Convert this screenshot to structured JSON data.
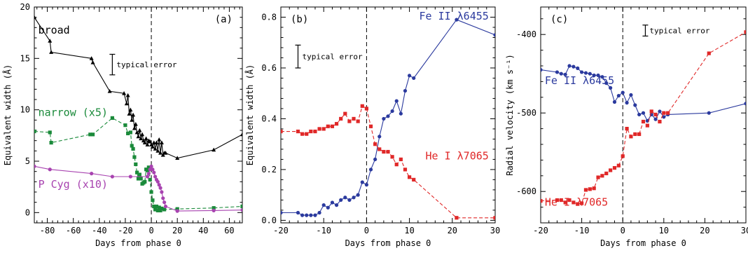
{
  "chart_data": [
    {
      "type": "line",
      "panel_label": "(a)",
      "xlabel": "Days from phase 0",
      "ylabel": "Equivalent width (Å)",
      "xlim": [
        -90,
        70
      ],
      "ylim": [
        -1,
        20
      ],
      "xticks": [
        -80,
        -60,
        -40,
        -20,
        0,
        20,
        40,
        60
      ],
      "yticks": [
        0,
        5,
        10,
        15,
        20
      ],
      "phase_zero_line": true,
      "typical_error": {
        "label": "typical error",
        "x": -30,
        "y": 14.4,
        "half_height": 1.0
      },
      "series": [
        {
          "name": "broad",
          "color": "#000000",
          "marker": "triangle",
          "dashed": false,
          "label_pos": [
            -87,
            17.4
          ],
          "x": [
            -90,
            -78,
            -77,
            -46,
            -45,
            -32,
            -21,
            -19,
            -18,
            -17,
            -16,
            -15,
            -14,
            -13,
            -12,
            -11,
            -10,
            -9,
            -8,
            -7,
            -6,
            -5,
            -4,
            -3,
            -2,
            -1,
            0,
            1,
            2,
            3,
            4,
            5,
            6,
            7,
            8,
            9,
            10,
            11,
            20,
            48,
            70
          ],
          "y": [
            19.0,
            16.7,
            15.6,
            15.0,
            14.6,
            11.8,
            11.6,
            10.6,
            11.4,
            9.6,
            10.0,
            9.0,
            9.5,
            8.2,
            8.6,
            7.8,
            7.4,
            8.0,
            7.2,
            7.6,
            7.0,
            6.8,
            7.2,
            6.6,
            7.0,
            6.9,
            6.6,
            6.4,
            6.8,
            6.2,
            6.8,
            6.0,
            7.1,
            5.8,
            6.8,
            5.6,
            5.8,
            5.8,
            5.3,
            6.1,
            7.6
          ]
        },
        {
          "name": "narrow (x5)",
          "color": "#1a8a3a",
          "marker": "square",
          "dashed": true,
          "label_pos": [
            -87,
            9.4
          ],
          "x": [
            -90,
            -78,
            -77,
            -47,
            -45,
            -30,
            -20,
            -18,
            -16,
            -15,
            -14,
            -13,
            -12,
            -11,
            -10,
            -9,
            -8,
            -7,
            -6,
            -5,
            -4,
            -3,
            -2,
            -1,
            0,
            1,
            2,
            3,
            4,
            5,
            6,
            7,
            8,
            10,
            20,
            48,
            70
          ],
          "y": [
            7.9,
            7.8,
            6.8,
            7.6,
            7.6,
            9.2,
            8.5,
            7.7,
            7.8,
            6.5,
            6.2,
            5.4,
            4.7,
            3.9,
            3.3,
            3.7,
            3.3,
            2.8,
            2.9,
            3.0,
            4.2,
            4.1,
            4.4,
            3.2,
            2.0,
            1.2,
            0.6,
            0.3,
            0.6,
            0.2,
            0.5,
            0.2,
            0.4,
            0.3,
            0.35,
            0.45,
            0.6
          ]
        },
        {
          "name": "P Cyg (x10)",
          "color": "#a843b0",
          "marker": "circle",
          "dashed": false,
          "label_pos": [
            -87,
            2.4
          ],
          "x": [
            -90,
            -78,
            -46,
            -30,
            -16,
            -3,
            -2,
            -1,
            0,
            1,
            2,
            3,
            4,
            5,
            6,
            7,
            8,
            9,
            10,
            11,
            20,
            48,
            70
          ],
          "y": [
            4.5,
            4.2,
            3.8,
            3.5,
            3.5,
            3.5,
            3.8,
            4.2,
            4.5,
            4.2,
            3.9,
            3.5,
            3.2,
            3.0,
            2.7,
            2.4,
            2.0,
            1.4,
            1.0,
            0.6,
            0.15,
            0.2,
            0.25
          ]
        }
      ]
    },
    {
      "type": "line",
      "panel_label": "(b)",
      "xlabel": "Days from phase 0",
      "ylabel": "Equivalent width (Å)",
      "xlim": [
        -20,
        30
      ],
      "ylim": [
        -0.01,
        0.84
      ],
      "xticks": [
        -20,
        -10,
        0,
        10,
        20,
        30
      ],
      "yticks": [
        0.0,
        0.2,
        0.4,
        0.6,
        0.8
      ],
      "phase_zero_line": true,
      "typical_error": {
        "label": "typical error",
        "x": -16,
        "y": 0.645,
        "half_height": 0.045
      },
      "series": [
        {
          "name": "Fe II λ6455",
          "color": "#2b3a9e",
          "marker": "circle",
          "dashed": false,
          "label_pos": [
            28.5,
            0.79
          ],
          "label_anchor": "end",
          "x": [
            -20,
            -16,
            -15,
            -14,
            -13,
            -12,
            -11,
            -10,
            -9,
            -8,
            -7,
            -6,
            -5,
            -4,
            -3,
            -2,
            -1,
            0,
            1,
            2,
            3,
            4,
            5,
            6,
            7,
            8,
            9,
            10,
            11,
            21,
            30
          ],
          "y": [
            0.03,
            0.03,
            0.02,
            0.02,
            0.02,
            0.02,
            0.03,
            0.06,
            0.05,
            0.07,
            0.06,
            0.08,
            0.09,
            0.08,
            0.09,
            0.1,
            0.15,
            0.14,
            0.2,
            0.24,
            0.33,
            0.4,
            0.41,
            0.43,
            0.47,
            0.42,
            0.51,
            0.57,
            0.56,
            0.79,
            0.73
          ]
        },
        {
          "name": "He I λ7065",
          "color": "#e02828",
          "marker": "square",
          "dashed": true,
          "label_pos": [
            28.5,
            0.24
          ],
          "label_anchor": "end",
          "x": [
            -20,
            -16,
            -15,
            -14,
            -13,
            -12,
            -11,
            -10,
            -9,
            -8,
            -7,
            -6,
            -5,
            -4,
            -3,
            -2,
            -1,
            0,
            1,
            2,
            3,
            4,
            5,
            6,
            7,
            8,
            9,
            10,
            11,
            21,
            30
          ],
          "y": [
            0.35,
            0.35,
            0.34,
            0.34,
            0.35,
            0.35,
            0.36,
            0.36,
            0.37,
            0.37,
            0.38,
            0.4,
            0.42,
            0.39,
            0.4,
            0.39,
            0.45,
            0.44,
            0.37,
            0.3,
            0.28,
            0.27,
            0.27,
            0.25,
            0.22,
            0.24,
            0.2,
            0.17,
            0.16,
            0.01,
            0.01
          ]
        }
      ]
    },
    {
      "type": "line",
      "panel_label": "(c)",
      "xlabel": "Days from phase 0",
      "ylabel": "Radial velocity (km s⁻¹)",
      "xlim": [
        -20,
        30
      ],
      "ylim": [
        -640,
        -365
      ],
      "xticks": [
        -20,
        -10,
        0,
        10,
        20,
        30
      ],
      "yticks": [
        -600,
        -500,
        -400
      ],
      "phase_zero_line": true,
      "typical_error": {
        "label": "typical error",
        "x": 5.5,
        "y": -395,
        "half_height": 7
      },
      "series": [
        {
          "name": "Fe II λ6455",
          "color": "#2b3a9e",
          "marker": "circle",
          "dashed": false,
          "label_pos": [
            -19,
            -463
          ],
          "x": [
            -20,
            -16,
            -15,
            -14,
            -13,
            -12,
            -11,
            -10,
            -9,
            -8,
            -7,
            -6,
            -5,
            -4,
            -3,
            -2,
            -1,
            0,
            1,
            2,
            3,
            4,
            5,
            6,
            7,
            8,
            9,
            10,
            11,
            21,
            30
          ],
          "y": [
            -445,
            -448,
            -450,
            -451,
            -440,
            -441,
            -443,
            -448,
            -449,
            -450,
            -452,
            -452,
            -454,
            -462,
            -468,
            -486,
            -478,
            -474,
            -487,
            -477,
            -490,
            -502,
            -500,
            -510,
            -502,
            -508,
            -498,
            -505,
            -502,
            -500,
            -488
          ]
        },
        {
          "name": "He I λ7065",
          "color": "#e02828",
          "marker": "square",
          "dashed": true,
          "label_pos": [
            -19,
            -618
          ],
          "x": [
            -20,
            -16,
            -15,
            -14,
            -13,
            -12,
            -11,
            -10,
            -9,
            -8,
            -7,
            -6,
            -5,
            -4,
            -3,
            -2,
            -1,
            0,
            1,
            2,
            3,
            4,
            5,
            6,
            7,
            8,
            9,
            10,
            11,
            21,
            30
          ],
          "y": [
            -612,
            -611,
            -611,
            -614,
            -611,
            -614,
            -616,
            -615,
            -598,
            -597,
            -596,
            -582,
            -580,
            -577,
            -573,
            -570,
            -567,
            -555,
            -520,
            -530,
            -527,
            -527,
            -511,
            -516,
            -498,
            -502,
            -511,
            -500,
            -500,
            -424,
            -397
          ]
        }
      ]
    }
  ]
}
